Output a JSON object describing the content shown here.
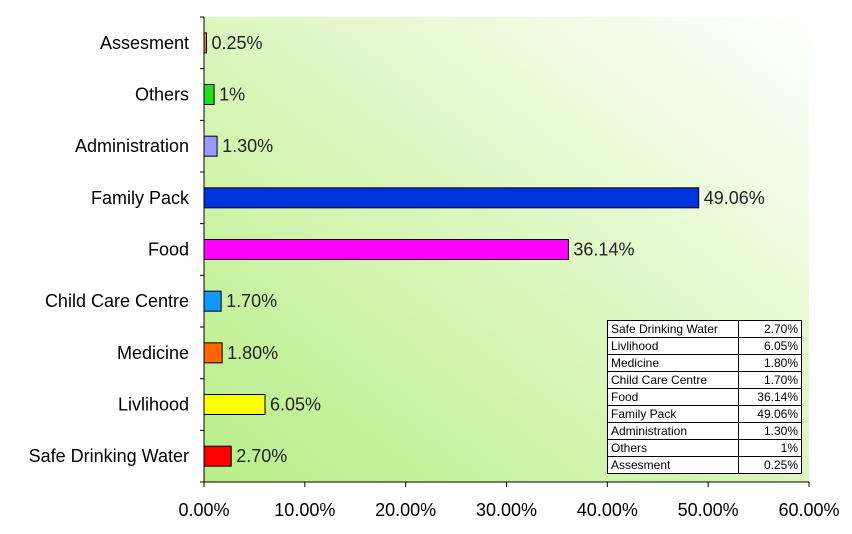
{
  "chart_data": {
    "type": "bar",
    "orientation": "horizontal",
    "categories": [
      "Assesment",
      "Others",
      "Administration",
      "Family Pack",
      "Food",
      "Child Care Centre",
      "Medicine",
      "Livlihood",
      "Safe Drinking Water"
    ],
    "values": [
      0.25,
      1,
      1.3,
      49.06,
      36.14,
      1.7,
      1.8,
      6.05,
      2.7
    ],
    "value_labels": [
      "0.25%",
      "1%",
      "1.30%",
      "49.06%",
      "36.14%",
      "1.70%",
      "1.80%",
      "6.05%",
      "2.70%"
    ],
    "colors": [
      "#e07a2a",
      "#22dd22",
      "#9999ff",
      "#0033dd",
      "#ff00ff",
      "#1199ff",
      "#ff6600",
      "#ffff00",
      "#ff0000"
    ],
    "xlim": [
      0,
      60
    ],
    "xticks": [
      0,
      10,
      20,
      30,
      40,
      50,
      60
    ],
    "xtick_labels": [
      "0.00%",
      "10.00%",
      "20.00%",
      "30.00%",
      "40.00%",
      "50.00%",
      "60.00%"
    ],
    "title": "",
    "xlabel": "",
    "ylabel": "",
    "grid": false,
    "legend": "none",
    "background": "green-to-white gradient",
    "data_table": [
      {
        "label": "Safe Drinking Water",
        "value": "2.70%"
      },
      {
        "label": "Livlihood",
        "value": "6.05%"
      },
      {
        "label": "Medicine",
        "value": "1.80%"
      },
      {
        "label": "Child Care Centre",
        "value": "1.70%"
      },
      {
        "label": "Food",
        "value": "36.14%"
      },
      {
        "label": "Family Pack",
        "value": "49.06%"
      },
      {
        "label": "Administration",
        "value": "1.30%"
      },
      {
        "label": "Others",
        "value": "1%"
      },
      {
        "label": "Assesment",
        "value": "0.25%"
      }
    ]
  }
}
